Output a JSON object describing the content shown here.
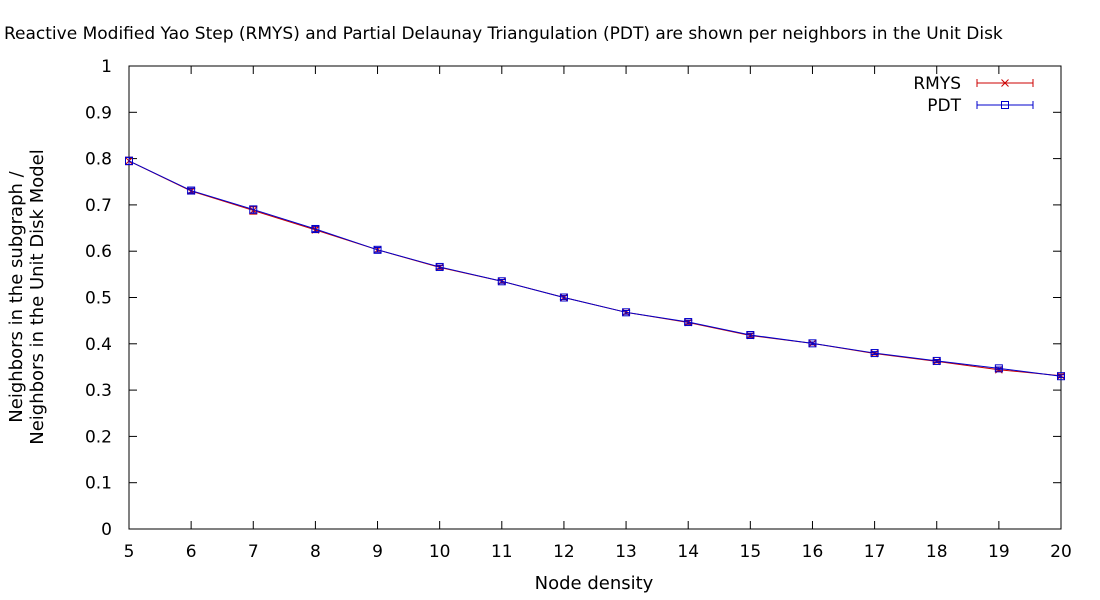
{
  "chart_data": {
    "type": "line",
    "title": "Reactive Modified Yao Step (RMYS) and Partial Delaunay Triangulation (PDT) are shown per neighbors in the Unit Disk",
    "xlabel": "Node density",
    "ylabel_lines": [
      "Neighbors in the subgraph /",
      "Neighbors in the Unit Disk Model"
    ],
    "xlim": [
      5,
      20
    ],
    "ylim": [
      0,
      1
    ],
    "x_ticks": [
      "5",
      "6",
      "7",
      "8",
      "9",
      "10",
      "11",
      "12",
      "13",
      "14",
      "15",
      "16",
      "17",
      "18",
      "19",
      "20"
    ],
    "y_ticks": [
      "0",
      "0.1",
      "0.2",
      "0.3",
      "0.4",
      "0.5",
      "0.6",
      "0.7",
      "0.8",
      "0.9",
      "1"
    ],
    "grid": false,
    "legend_position": "top-right",
    "x": [
      5,
      6,
      7,
      8,
      9,
      10,
      11,
      12,
      13,
      14,
      15,
      16,
      17,
      18,
      19,
      20
    ],
    "series": [
      {
        "name": "RMYS",
        "color": "#cc0000",
        "marker": "cross",
        "values": [
          0.795,
          0.73,
          0.688,
          0.646,
          0.603,
          0.565,
          0.535,
          0.5,
          0.468,
          0.446,
          0.418,
          0.401,
          0.379,
          0.362,
          0.344,
          0.331
        ],
        "error": [
          0.008,
          0.005,
          0.008,
          0.006,
          0.005,
          0.004,
          0.004,
          0.004,
          0.004,
          0.004,
          0.004,
          0.003,
          0.003,
          0.003,
          0.003,
          0.003
        ]
      },
      {
        "name": "PDT",
        "color": "#0000cc",
        "marker": "square",
        "values": [
          0.795,
          0.731,
          0.69,
          0.648,
          0.603,
          0.566,
          0.535,
          0.5,
          0.468,
          0.447,
          0.419,
          0.401,
          0.38,
          0.363,
          0.347,
          0.33
        ],
        "error": [
          0.008,
          0.005,
          0.008,
          0.006,
          0.005,
          0.004,
          0.004,
          0.004,
          0.004,
          0.004,
          0.004,
          0.003,
          0.003,
          0.003,
          0.003,
          0.003
        ]
      }
    ]
  }
}
